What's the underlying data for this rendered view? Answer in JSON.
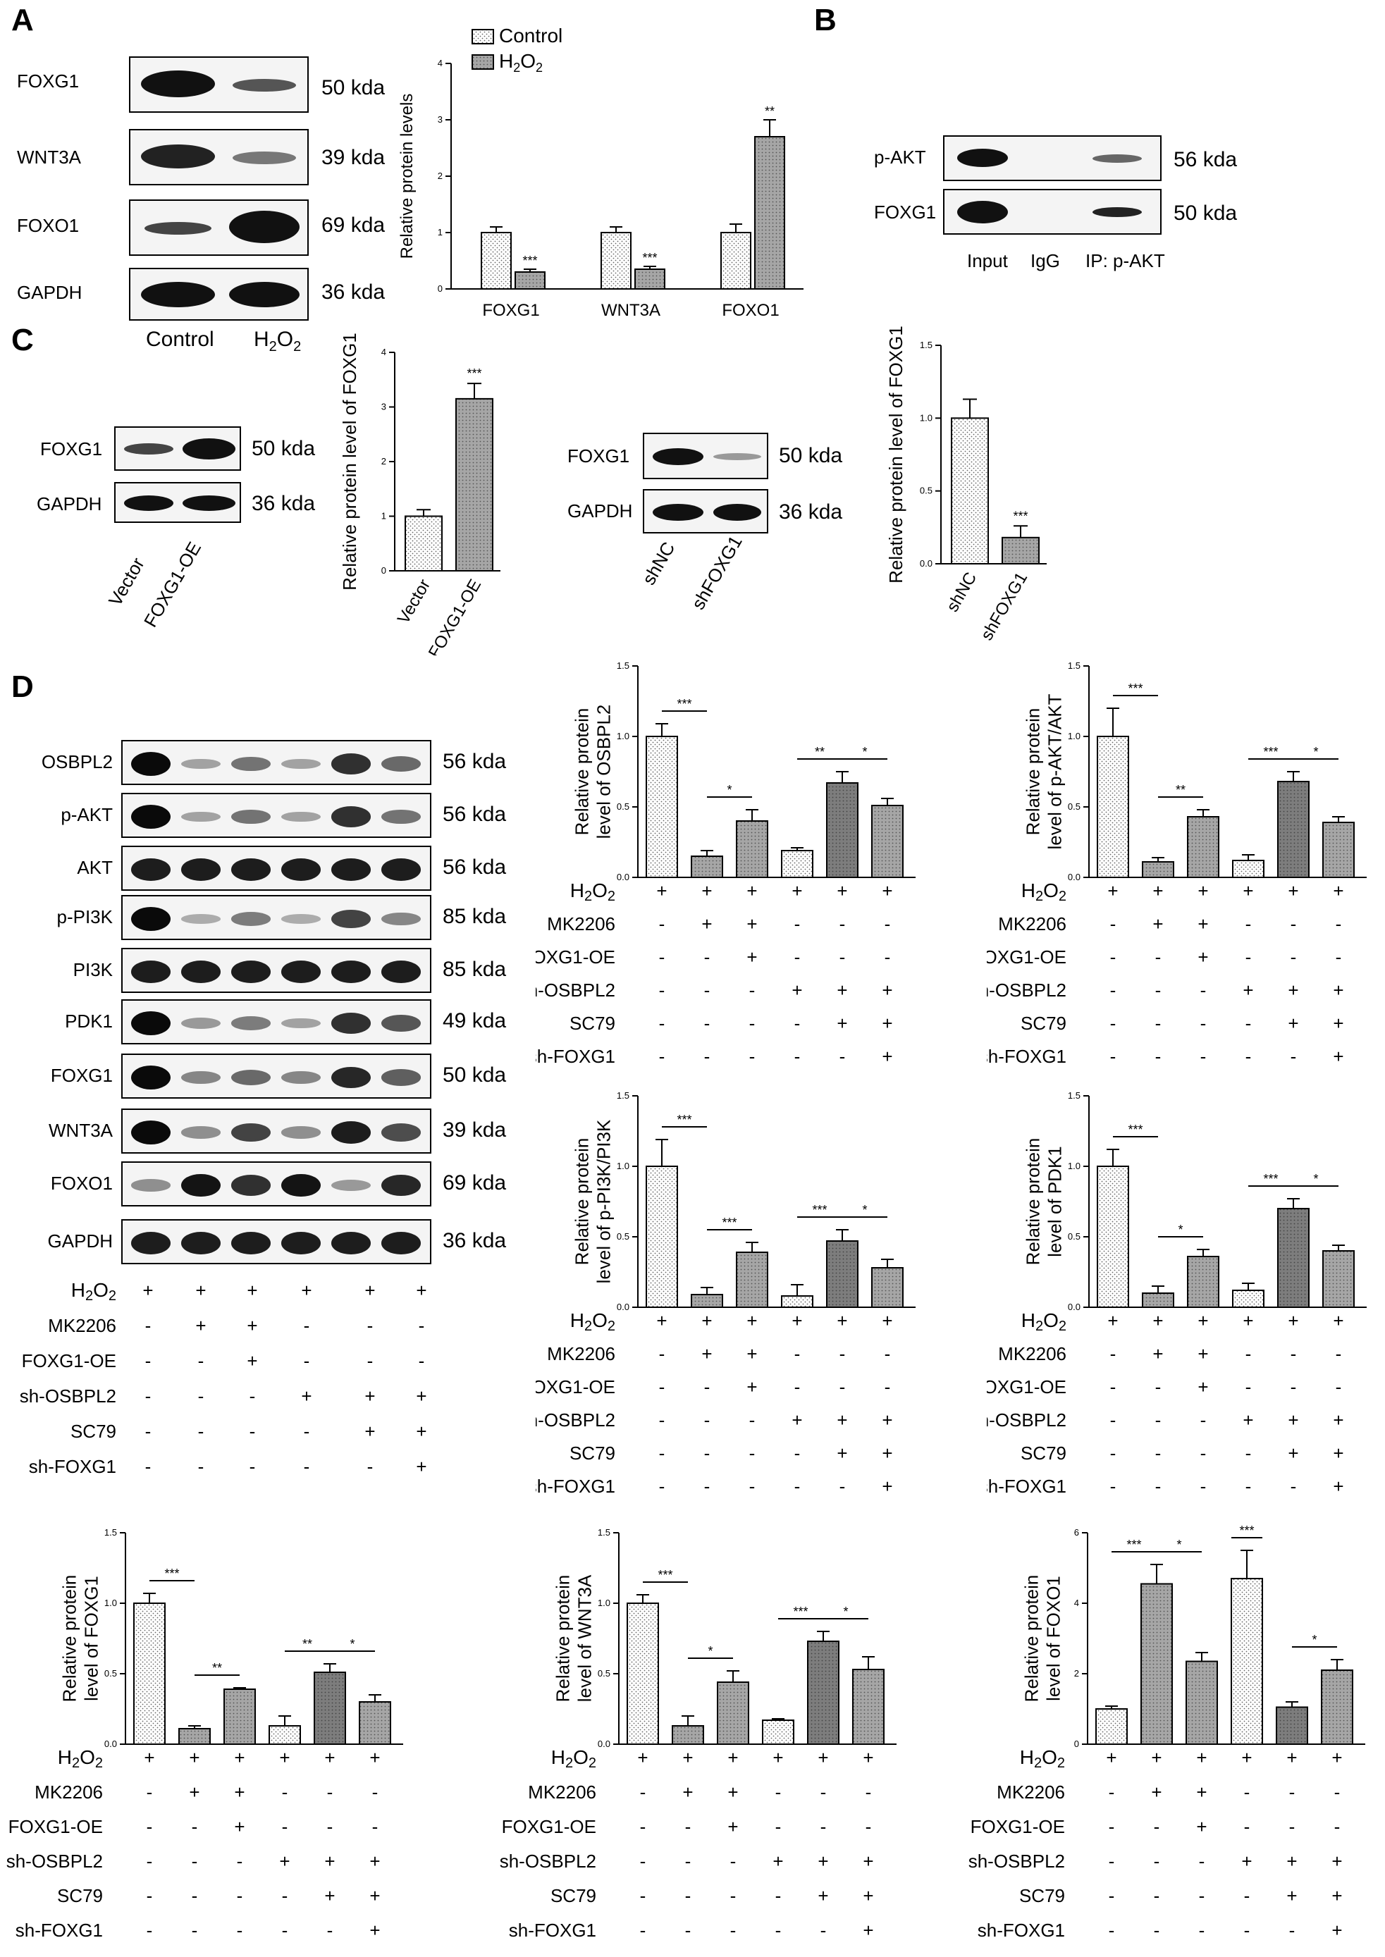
{
  "panels": {
    "a": "A",
    "b": "B",
    "c": "C",
    "d": "D"
  },
  "kda": {
    "k50": "50 kda",
    "k39": "39 kda",
    "k69": "69 kda",
    "k36": "36 kda",
    "k56": "56 kda",
    "k85": "85 kda",
    "k49": "49 kda"
  },
  "a_blot": {
    "rows": [
      "FOXG1",
      "WNT3A",
      "FOXO1",
      "GAPDH"
    ],
    "lanes": [
      "Control",
      "H2O2"
    ]
  },
  "a_chart": {
    "type": "bar",
    "legend": [
      "Control",
      "H2O2"
    ],
    "ylabel": "Relative protein levels",
    "categories": [
      "FOXG1",
      "WNT3A",
      "FOXO1"
    ],
    "series": [
      {
        "name": "Control",
        "values": [
          1.0,
          1.0,
          1.0
        ],
        "err": [
          0.1,
          0.1,
          0.15
        ]
      },
      {
        "name": "H2O2",
        "values": [
          0.3,
          0.35,
          2.7
        ],
        "err": [
          0.05,
          0.05,
          0.3
        ]
      }
    ],
    "sig": [
      "***",
      "***",
      "**"
    ],
    "ylim": [
      0,
      4
    ],
    "yticks": [
      "0",
      "1",
      "2",
      "3",
      "4"
    ]
  },
  "b_blot": {
    "rows": [
      "p-AKT",
      "FOXG1"
    ],
    "lanes": [
      "Input",
      "IgG",
      "IP: p-AKT"
    ]
  },
  "c_blot1": {
    "rows": [
      "FOXG1",
      "GAPDH"
    ],
    "lanes": [
      "Vector",
      "FOXG1-OE"
    ]
  },
  "c_blot2": {
    "rows": [
      "FOXG1",
      "GAPDH"
    ],
    "lanes": [
      "shNC",
      "shFOXG1"
    ]
  },
  "c_chart1": {
    "type": "bar",
    "ylabel": "Relative protein level of FOXG1",
    "categories": [
      "Vector",
      "FOXG1-OE"
    ],
    "values": [
      1.0,
      3.15
    ],
    "err": [
      0.12,
      0.28
    ],
    "sig": "***",
    "ylim": [
      0,
      4
    ],
    "yticks": [
      "0",
      "1",
      "2",
      "3",
      "4"
    ]
  },
  "c_chart2": {
    "type": "bar",
    "ylabel": "Relative protein level of FOXG1",
    "categories": [
      "shNC",
      "shFOXG1"
    ],
    "values": [
      1.0,
      0.18
    ],
    "err": [
      0.13,
      0.08
    ],
    "sig": "***",
    "ylim": [
      0,
      1.5
    ],
    "yticks": [
      "0.0",
      "0.5",
      "1.0",
      "1.5"
    ]
  },
  "d_blot": {
    "rows": [
      "OSBPL2",
      "p-AKT",
      "AKT",
      "p-PI3K",
      "PI3K",
      "PDK1",
      "FOXG1",
      "WNT3A",
      "FOXO1",
      "GAPDH"
    ]
  },
  "treat": {
    "names": [
      "H2O2",
      "MK2206",
      "FOXG1-OE",
      "sh-OSBPL2",
      "SC79",
      "sh-FOXG1"
    ],
    "signs": [
      [
        "+",
        "+",
        "+",
        "+",
        "+",
        "+"
      ],
      [
        "-",
        "+",
        "+",
        "-",
        "-",
        "-"
      ],
      [
        "-",
        "-",
        "+",
        "-",
        "-",
        "-"
      ],
      [
        "-",
        "-",
        "-",
        "+",
        "+",
        "+"
      ],
      [
        "-",
        "-",
        "-",
        "-",
        "+",
        "+"
      ],
      [
        "-",
        "-",
        "-",
        "-",
        "-",
        "+"
      ]
    ]
  },
  "chart_data": [
    {
      "type": "bar",
      "ylabel": "Relative protein\nlevel of OSBPL2",
      "values": [
        1.0,
        0.15,
        0.4,
        0.19,
        0.67,
        0.51
      ],
      "err": [
        0.09,
        0.04,
        0.08,
        0.02,
        0.08,
        0.05
      ],
      "ylim": [
        0,
        1.5
      ],
      "yticks": [
        "0.0",
        "0.5",
        "1.0",
        "1.5"
      ],
      "sig": [
        [
          0,
          1,
          "***"
        ],
        [
          1,
          2,
          "*"
        ],
        [
          3,
          4,
          "**"
        ],
        [
          4,
          5,
          "*"
        ]
      ]
    },
    {
      "type": "bar",
      "ylabel": "Relative protein\nlevel of p-AKT/AKT",
      "values": [
        1.0,
        0.11,
        0.43,
        0.12,
        0.68,
        0.39
      ],
      "err": [
        0.2,
        0.03,
        0.05,
        0.04,
        0.07,
        0.04
      ],
      "ylim": [
        0,
        1.5
      ],
      "yticks": [
        "0.0",
        "0.5",
        "1.0",
        "1.5"
      ],
      "sig": [
        [
          0,
          1,
          "***"
        ],
        [
          1,
          2,
          "**"
        ],
        [
          3,
          4,
          "***"
        ],
        [
          4,
          5,
          "*"
        ]
      ]
    },
    {
      "type": "bar",
      "ylabel": "Relative protein\nlevel of p-PI3K/PI3K",
      "values": [
        1.0,
        0.09,
        0.39,
        0.08,
        0.47,
        0.28
      ],
      "err": [
        0.19,
        0.05,
        0.07,
        0.08,
        0.08,
        0.06
      ],
      "ylim": [
        0,
        1.5
      ],
      "yticks": [
        "0.0",
        "0.5",
        "1.0",
        "1.5"
      ],
      "sig": [
        [
          0,
          1,
          "***"
        ],
        [
          1,
          2,
          "***"
        ],
        [
          3,
          4,
          "***"
        ],
        [
          4,
          5,
          "*"
        ]
      ]
    },
    {
      "type": "bar",
      "ylabel": "Relative protein\nlevel of PDK1",
      "values": [
        1.0,
        0.1,
        0.36,
        0.12,
        0.7,
        0.4
      ],
      "err": [
        0.12,
        0.05,
        0.05,
        0.05,
        0.07,
        0.04
      ],
      "ylim": [
        0,
        1.5
      ],
      "yticks": [
        "0.0",
        "0.5",
        "1.0",
        "1.5"
      ],
      "sig": [
        [
          0,
          1,
          "***"
        ],
        [
          1,
          2,
          "*"
        ],
        [
          3,
          4,
          "***"
        ],
        [
          4,
          5,
          "*"
        ]
      ]
    },
    {
      "type": "bar",
      "ylabel": "Relative protein\nlevel of FOXG1",
      "values": [
        1.0,
        0.11,
        0.39,
        0.13,
        0.51,
        0.3
      ],
      "err": [
        0.07,
        0.02,
        0.01,
        0.07,
        0.06,
        0.05
      ],
      "ylim": [
        0,
        1.5
      ],
      "yticks": [
        "0.0",
        "0.5",
        "1.0",
        "1.5"
      ],
      "sig": [
        [
          0,
          1,
          "***"
        ],
        [
          1,
          2,
          "**"
        ],
        [
          3,
          4,
          "**"
        ],
        [
          4,
          5,
          "*"
        ]
      ]
    },
    {
      "type": "bar",
      "ylabel": "Relative protein\nlevel of WNT3A",
      "values": [
        1.0,
        0.13,
        0.44,
        0.17,
        0.73,
        0.53
      ],
      "err": [
        0.06,
        0.07,
        0.08,
        0.01,
        0.07,
        0.09
      ],
      "ylim": [
        0,
        1.5
      ],
      "yticks": [
        "0.0",
        "0.5",
        "1.0",
        "1.5"
      ],
      "sig": [
        [
          0,
          1,
          "***"
        ],
        [
          1,
          2,
          "*"
        ],
        [
          3,
          4,
          "***"
        ],
        [
          4,
          5,
          "*"
        ]
      ]
    },
    {
      "type": "bar",
      "ylabel": "Relative protein\nlevel of FOXO1",
      "values": [
        1.0,
        4.55,
        2.35,
        4.7,
        1.05,
        2.1
      ],
      "err": [
        0.08,
        0.55,
        0.25,
        0.8,
        0.15,
        0.3
      ],
      "ylim": [
        0,
        6
      ],
      "yticks": [
        "0",
        "2",
        "4",
        "6"
      ],
      "sig": [
        [
          0,
          1,
          "***"
        ],
        [
          1,
          2,
          "*"
        ],
        [
          3,
          3,
          "***"
        ],
        [
          4,
          5,
          "*"
        ]
      ]
    }
  ]
}
